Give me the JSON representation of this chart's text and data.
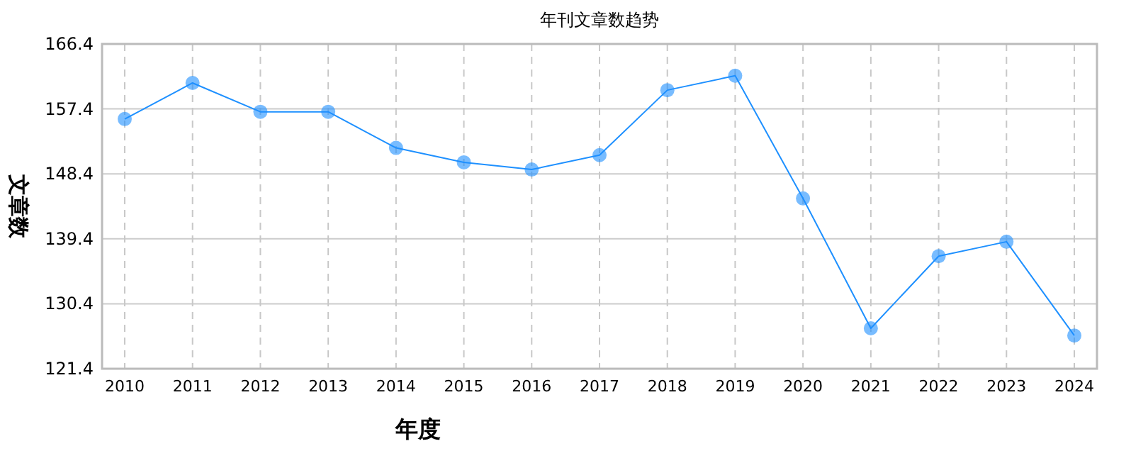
{
  "chart_data": {
    "type": "line",
    "title": "年刊文章数趋势",
    "xlabel": "年度",
    "ylabel": "文章数",
    "categories": [
      "2010",
      "2011",
      "2012",
      "2013",
      "2014",
      "2015",
      "2016",
      "2017",
      "2018",
      "2019",
      "2020",
      "2021",
      "2022",
      "2023",
      "2024"
    ],
    "series": [
      {
        "color": "#1e90ff",
        "values": [
          156,
          161,
          157,
          157,
          152,
          150,
          149,
          151,
          160,
          162,
          145,
          127,
          137,
          139,
          126
        ]
      }
    ],
    "ylim": [
      121.4,
      166.4
    ],
    "yticks": [
      {
        "value": 121.4,
        "label": "121.4"
      },
      {
        "value": 130.4,
        "label": "130.4"
      },
      {
        "value": 139.4,
        "label": "139.4"
      },
      {
        "value": 148.4,
        "label": "148.4"
      },
      {
        "value": 157.4,
        "label": "157.4"
      },
      {
        "value": 166.4,
        "label": "166.4"
      }
    ],
    "grid": true,
    "marker": "circle",
    "line_style": "solid"
  }
}
